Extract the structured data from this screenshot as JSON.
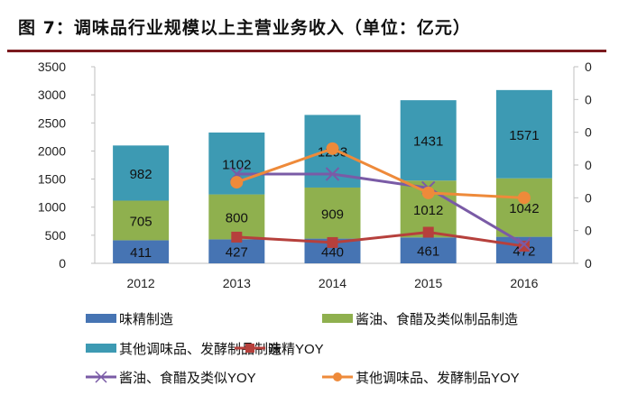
{
  "chart_data": {
    "type": "bar",
    "title": "图 7：调味品行业规模以上主营业务收入（单位：亿元）",
    "categories": [
      "2012",
      "2013",
      "2014",
      "2015",
      "2016"
    ],
    "ylim": [
      0,
      3500
    ],
    "yticks": [
      0,
      500,
      1000,
      1500,
      2000,
      2500,
      3000,
      3500
    ],
    "y2lim": [
      0,
      0.12
    ],
    "y2ticks": [
      0,
      0.02,
      0.04,
      0.06,
      0.08,
      0.1,
      0.12
    ],
    "y2tick_labels": [
      "0",
      "0",
      "0",
      "0",
      "0",
      "0",
      "0"
    ],
    "stacked": true,
    "legend_position": "bottom",
    "bar_series": [
      {
        "name": "味精制造",
        "values": [
          411,
          427,
          440,
          461,
          472
        ],
        "color": "#4674b3"
      },
      {
        "name": "酱油、食醋及类似制品制造",
        "values": [
          705,
          800,
          909,
          1012,
          1042
        ],
        "color": "#8fb04e"
      },
      {
        "name": "其他调味品、发酵制品制造",
        "values": [
          982,
          1102,
          1293,
          1431,
          1571
        ],
        "color": "#3d9ab3"
      }
    ],
    "line_series": [
      {
        "name": "味精YOY",
        "axis": "right",
        "values": [
          null,
          0.016,
          0.0127,
          0.019,
          0.0105
        ],
        "color": "#b6403c",
        "marker": "square"
      },
      {
        "name": "酱油、食醋及类似YOY",
        "axis": "right",
        "values": [
          null,
          0.0545,
          0.0545,
          0.046,
          0.0116
        ],
        "color": "#7a5ba6",
        "marker": "x"
      },
      {
        "name": "其他调味品、发酵制品YOY",
        "axis": "right",
        "values": [
          null,
          0.0495,
          0.07,
          0.043,
          0.04
        ],
        "color": "#ee8a3a",
        "marker": "circle"
      }
    ]
  }
}
